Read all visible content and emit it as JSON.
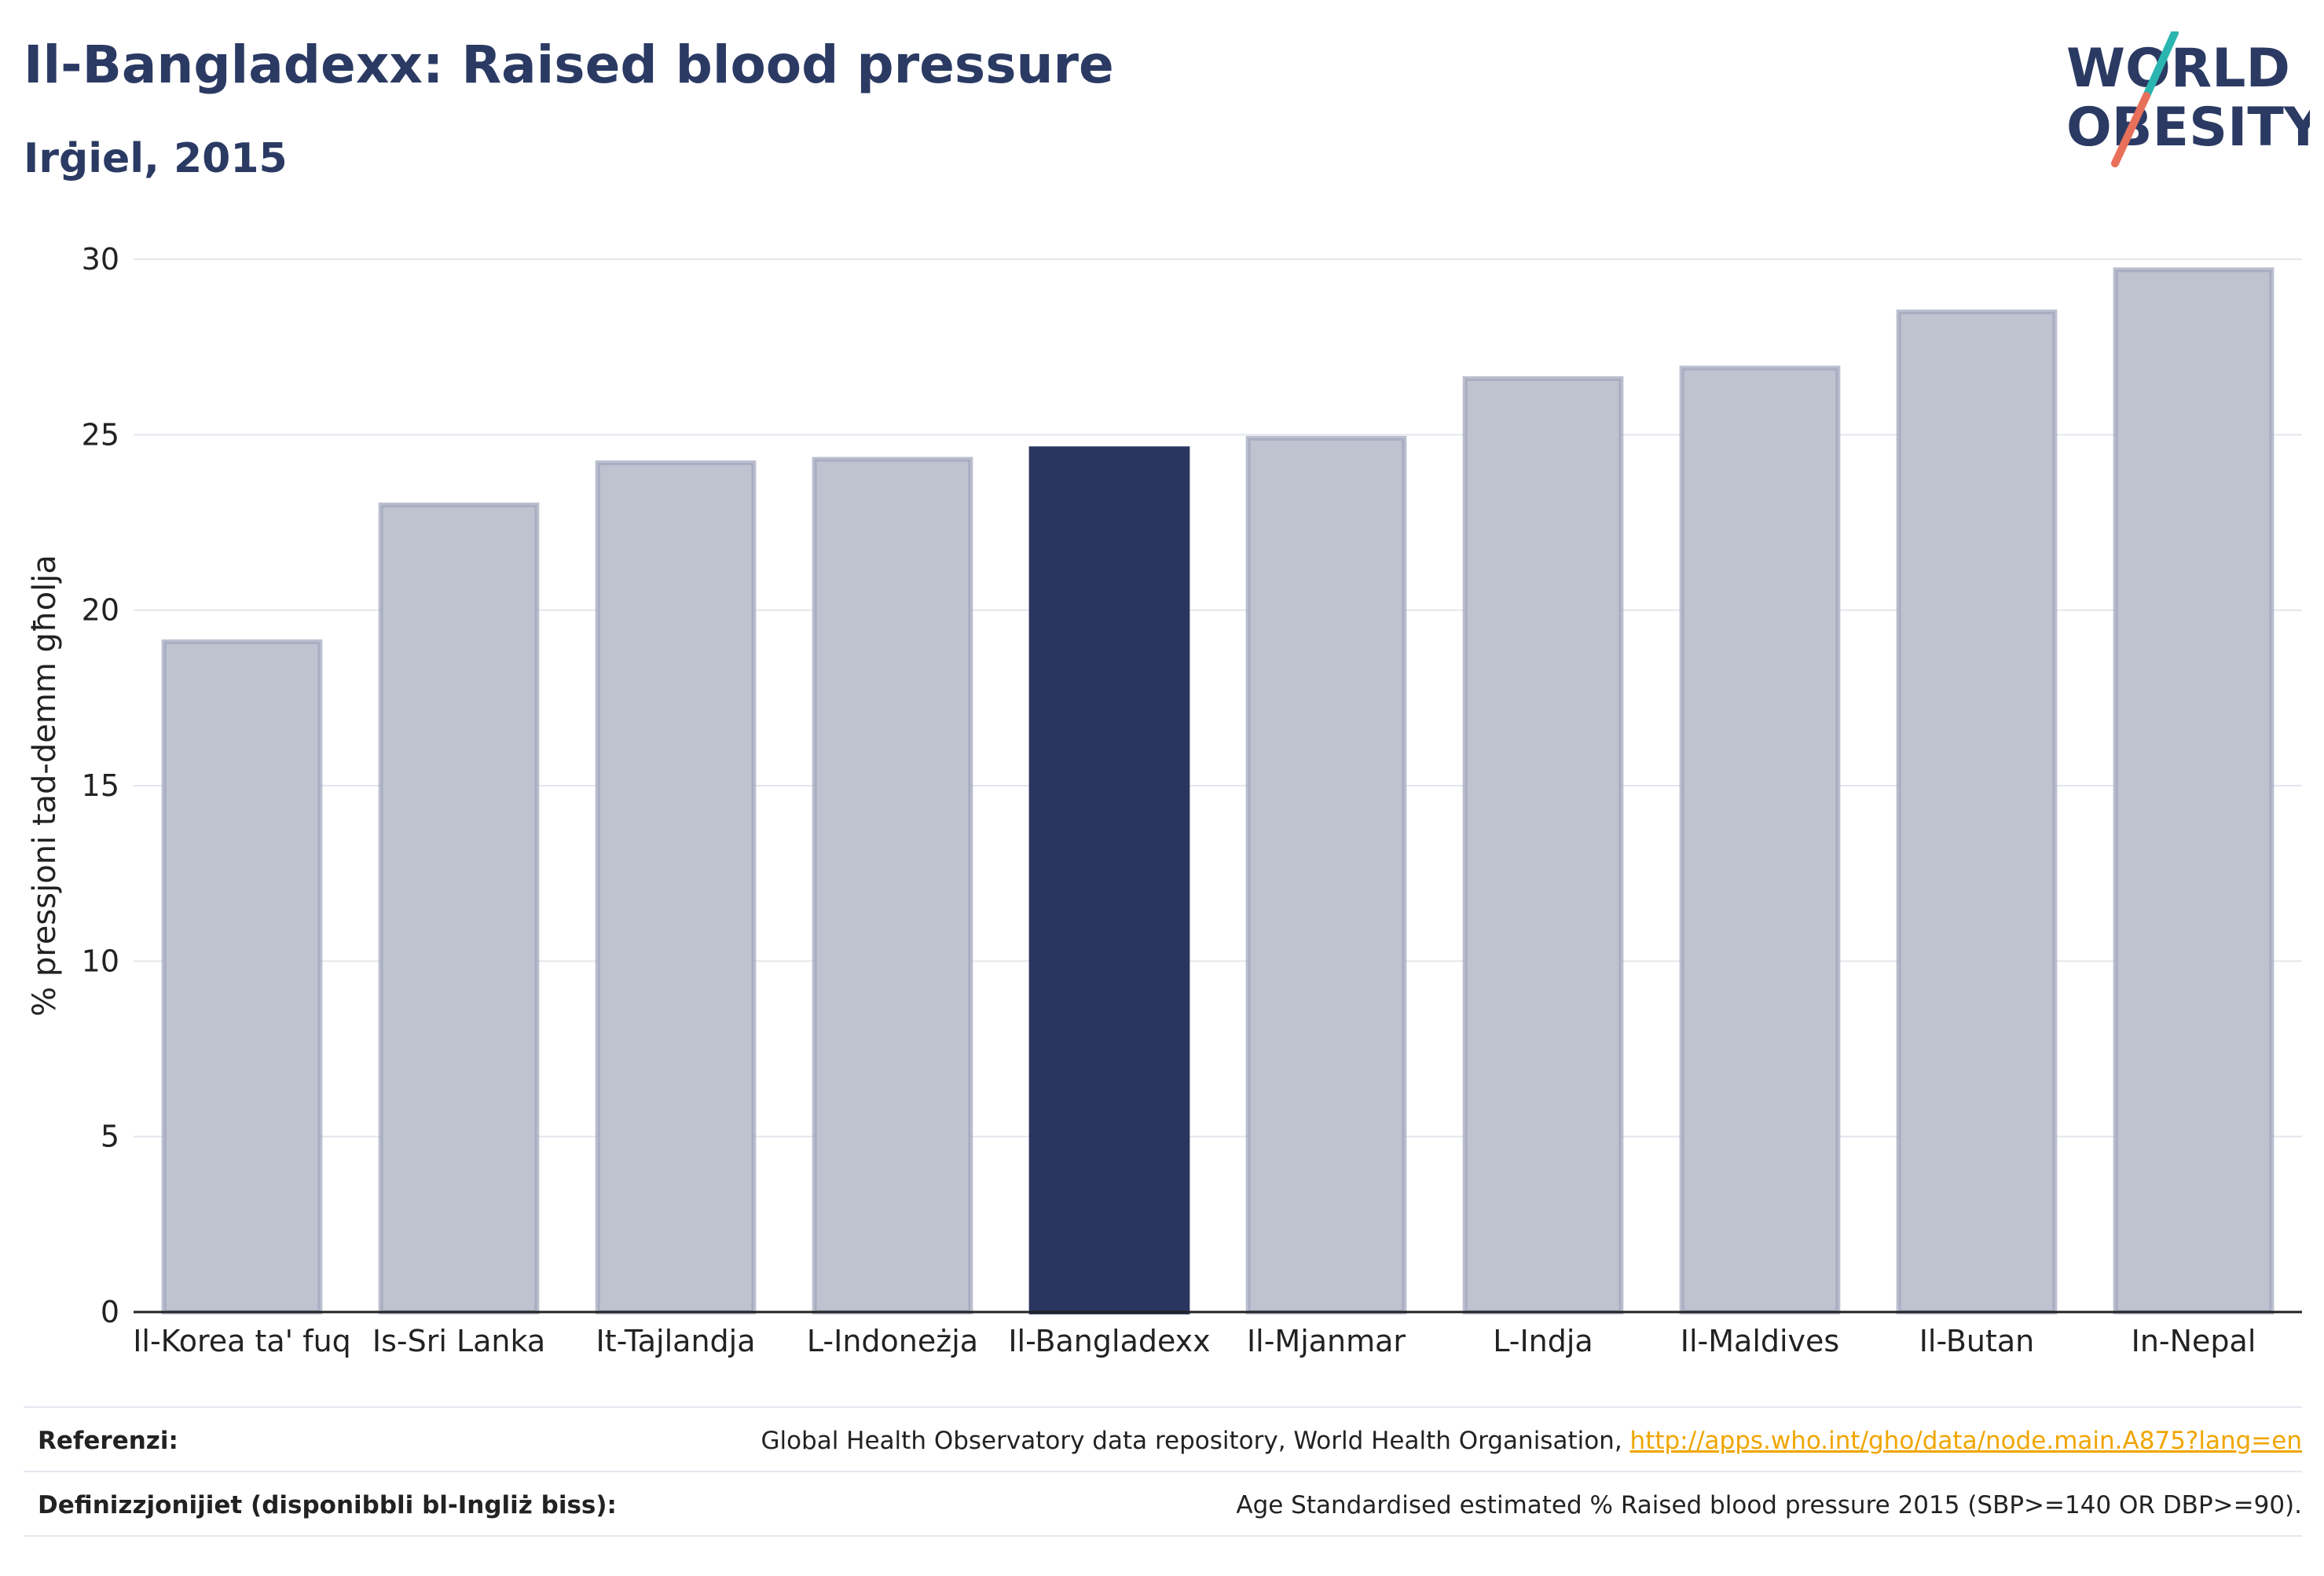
{
  "header": {
    "title": "Il-Bangladexx: Raised blood pressure",
    "subtitle": "Irġiel, 2015"
  },
  "logo": {
    "line1": "WORLD",
    "line2": "OBESITY",
    "accent_teal": "#2bb5b0",
    "accent_coral": "#e8705a"
  },
  "chart_data": {
    "type": "bar",
    "categories": [
      "Il-Korea ta' fuq",
      "Is-Sri Lanka",
      "It-Tajlandja",
      "L-Indoneżja",
      "Il-Bangladexx",
      "Il-Mjanmar",
      "L-Indja",
      "Il-Maldives",
      "Il-Butan",
      "In-Nepal"
    ],
    "values": [
      19.1,
      23.0,
      24.2,
      24.3,
      24.6,
      24.9,
      26.6,
      26.9,
      28.5,
      29.7
    ],
    "highlight_index": 4,
    "ylabel": "% pressjoni tad-demm għolja",
    "ylim": [
      0,
      30
    ],
    "yticks": [
      0,
      5,
      10,
      15,
      20,
      25,
      30
    ],
    "grid": true,
    "colors": {
      "bar": "#bfc2cf",
      "bar_edge": "#9ea4bb",
      "highlight": "#2b3660"
    }
  },
  "footer": {
    "references_label": "Referenzi:",
    "references_text": "Global Health Observatory data repository, World Health Organisation, ",
    "references_link": "http://apps.who.int/gho/data/node.main.A875?lang=en",
    "definitions_label": "Definizzjonijiet (disponibbli bl-Ingliż biss):",
    "definitions_text": "Age Standardised estimated % Raised blood pressure 2015 (SBP>=140 OR DBP>=90)."
  }
}
